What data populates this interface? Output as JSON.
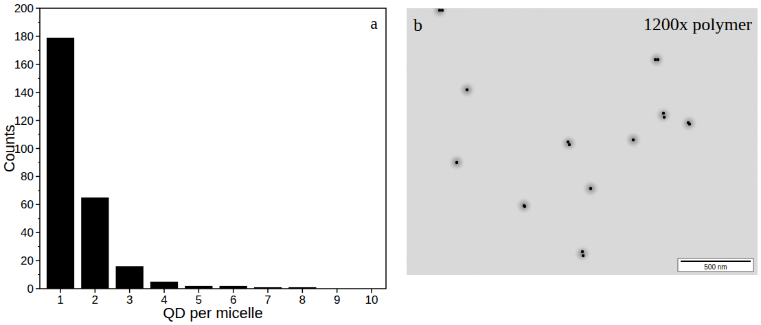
{
  "chart_data": {
    "type": "bar",
    "categories": [
      "1",
      "2",
      "3",
      "4",
      "5",
      "6",
      "7",
      "8",
      "9",
      "10"
    ],
    "values": [
      179,
      65,
      16,
      5,
      2,
      2,
      1,
      1,
      0,
      0
    ],
    "color": "#000000",
    "x_label": "QD per micelle",
    "y_label": "Counts",
    "annotations": [
      "a"
    ],
    "ylim": [
      0,
      200
    ],
    "yticks": [
      0,
      20,
      40,
      60,
      80,
      100,
      120,
      140,
      160,
      180,
      200
    ],
    "grid": false
  },
  "image_panel": {
    "panel_label": "b",
    "label": "1200x polymer",
    "scale_bar": "500 nm"
  }
}
